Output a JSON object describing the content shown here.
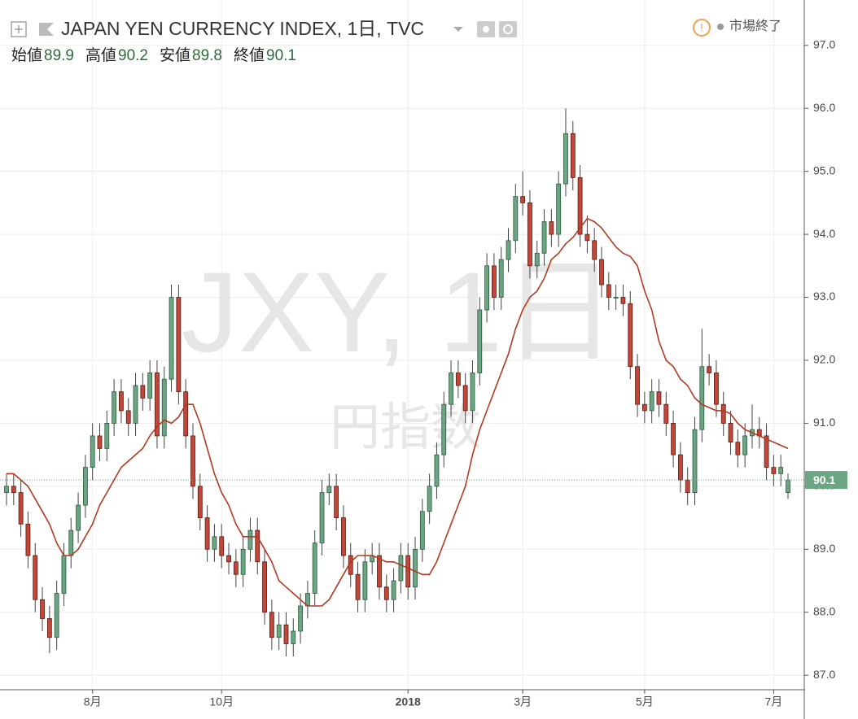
{
  "chart_data": {
    "type": "candlestick",
    "title": "JAPAN YEN CURRENCY INDEX, 1日, TVC",
    "ohlc_labels": [
      "始値",
      "高値",
      "安値",
      "終値"
    ],
    "status": "市場終了",
    "watermark": [
      "JXY, 1日",
      "円指数"
    ],
    "up_color": "#6ba583",
    "down_color": "#c0473a",
    "ma_color": "#b23a22",
    "grid": true,
    "categories": [
      null,
      null,
      null,
      null,
      null,
      null,
      null,
      null,
      null,
      null,
      null,
      null,
      "8月",
      null,
      null,
      null,
      null,
      null,
      null,
      null,
      null,
      null,
      null,
      null,
      null,
      null,
      null,
      null,
      null,
      null,
      "10月",
      null,
      null,
      null,
      null,
      null,
      null,
      null,
      null,
      null,
      null,
      null,
      null,
      null,
      null,
      null,
      null,
      null,
      null,
      null,
      null,
      null,
      null,
      null,
      null,
      null,
      "2018",
      null,
      null,
      null,
      null,
      null,
      null,
      null,
      null,
      null,
      null,
      null,
      null,
      null,
      null,
      null,
      "3月",
      null,
      null,
      null,
      null,
      null,
      null,
      null,
      null,
      null,
      null,
      null,
      null,
      null,
      null,
      null,
      null,
      "5月",
      null,
      null,
      null,
      null,
      null,
      null,
      null,
      null,
      null,
      null,
      null,
      null,
      null,
      null,
      null,
      null,
      null,
      "7月",
      null,
      null
    ],
    "open": [
      89.9,
      90.0,
      89.9,
      89.4,
      88.9,
      88.2,
      87.9,
      87.6,
      88.3,
      88.9,
      89.3,
      89.7,
      90.3,
      90.8,
      90.6,
      91.0,
      91.5,
      91.2,
      91.0,
      91.6,
      91.4,
      91.8,
      90.8,
      91.7,
      93.0,
      91.5,
      90.8,
      90.0,
      89.5,
      89.0,
      89.2,
      88.9,
      88.8,
      88.6,
      89.0,
      89.3,
      88.8,
      88.0,
      87.6,
      87.8,
      87.5,
      87.7,
      88.1,
      88.3,
      89.1,
      89.9,
      90.0,
      89.5,
      88.9,
      88.6,
      88.2,
      88.8,
      88.9,
      88.4,
      88.2,
      88.5,
      88.9,
      88.4,
      89.0,
      89.6,
      90.0,
      90.5,
      91.3,
      91.8,
      91.6,
      91.2,
      91.8,
      92.8,
      93.5,
      93.0,
      93.6,
      93.9,
      94.6,
      94.5,
      93.5,
      93.7,
      94.2,
      94.0,
      94.8,
      95.6,
      94.9,
      94.0,
      93.9,
      93.6,
      93.2,
      93.0,
      93.0,
      92.9,
      91.9,
      91.3,
      91.2,
      91.5,
      91.3,
      91.0,
      90.5,
      90.1,
      89.9,
      90.9,
      91.9,
      91.8,
      91.3,
      91.0,
      90.7,
      90.5,
      90.8,
      90.9,
      90.8,
      90.3,
      90.2,
      89.9
    ],
    "high": [
      90.2,
      90.2,
      90.1,
      89.6,
      89.1,
      88.4,
      88.1,
      88.5,
      89.1,
      89.5,
      89.9,
      90.5,
      91.0,
      91.0,
      91.2,
      91.7,
      91.7,
      91.4,
      91.8,
      91.8,
      92.0,
      92.0,
      91.9,
      93.2,
      93.2,
      91.7,
      91.0,
      90.2,
      89.7,
      89.4,
      89.4,
      89.1,
      89.0,
      89.2,
      89.5,
      89.5,
      89.0,
      88.2,
      88.0,
      88.0,
      87.9,
      88.3,
      88.5,
      89.3,
      90.1,
      90.2,
      90.2,
      89.7,
      89.1,
      88.8,
      89.0,
      89.1,
      89.1,
      88.6,
      88.7,
      89.1,
      89.1,
      89.2,
      89.8,
      90.2,
      90.7,
      91.5,
      92.0,
      92.0,
      91.8,
      92.0,
      93.0,
      93.7,
      93.7,
      93.8,
      94.1,
      94.8,
      95.0,
      94.7,
      93.9,
      94.4,
      94.4,
      95.0,
      96.0,
      95.8,
      95.1,
      94.3,
      94.1,
      93.8,
      93.4,
      93.2,
      93.2,
      93.1,
      92.1,
      91.5,
      91.7,
      91.7,
      91.5,
      91.2,
      90.7,
      90.3,
      91.1,
      92.5,
      92.1,
      92.0,
      91.5,
      91.2,
      90.9,
      91.0,
      91.3,
      91.1,
      91.0,
      90.5,
      90.5,
      90.2
    ],
    "low": [
      89.7,
      89.7,
      89.2,
      88.7,
      88.0,
      87.7,
      87.35,
      87.4,
      88.1,
      88.7,
      89.1,
      89.5,
      90.1,
      90.4,
      90.4,
      90.8,
      91.0,
      90.8,
      90.8,
      91.2,
      91.2,
      90.6,
      90.6,
      91.5,
      91.3,
      90.6,
      89.8,
      89.3,
      88.8,
      88.8,
      88.7,
      88.6,
      88.4,
      88.4,
      88.8,
      88.6,
      87.8,
      87.4,
      87.4,
      87.3,
      87.3,
      87.5,
      87.9,
      88.1,
      88.9,
      89.7,
      89.3,
      88.7,
      88.4,
      88.0,
      88.0,
      88.6,
      88.2,
      88.0,
      88.0,
      88.3,
      88.2,
      88.2,
      88.8,
      89.4,
      89.8,
      90.3,
      91.1,
      91.4,
      91.0,
      91.0,
      91.6,
      92.6,
      92.8,
      92.8,
      93.4,
      93.7,
      94.3,
      93.3,
      93.3,
      93.5,
      93.8,
      93.8,
      94.6,
      94.7,
      93.8,
      93.7,
      93.4,
      93.0,
      92.8,
      92.8,
      92.7,
      91.7,
      91.1,
      91.0,
      91.0,
      91.1,
      90.8,
      90.3,
      89.9,
      89.7,
      89.7,
      90.7,
      91.6,
      91.1,
      90.8,
      90.5,
      90.3,
      90.3,
      90.6,
      90.6,
      90.1,
      90.0,
      90.0,
      89.8
    ],
    "close": [
      90.0,
      89.9,
      89.4,
      88.9,
      88.2,
      87.9,
      87.6,
      88.3,
      88.9,
      89.3,
      89.7,
      90.3,
      90.8,
      90.6,
      91.0,
      91.5,
      91.2,
      91.0,
      91.6,
      91.4,
      91.8,
      90.8,
      91.7,
      93.0,
      91.5,
      90.8,
      90.0,
      89.5,
      89.0,
      89.2,
      88.9,
      88.8,
      88.6,
      89.0,
      89.3,
      88.8,
      88.0,
      87.6,
      87.8,
      87.5,
      87.7,
      88.1,
      88.3,
      89.1,
      89.9,
      90.0,
      89.5,
      88.9,
      88.6,
      88.2,
      88.8,
      88.9,
      88.4,
      88.2,
      88.5,
      88.9,
      88.4,
      89.0,
      89.6,
      90.0,
      90.5,
      91.3,
      91.8,
      91.6,
      91.2,
      91.8,
      92.8,
      93.5,
      93.0,
      93.6,
      93.9,
      94.6,
      94.5,
      93.5,
      93.7,
      94.2,
      94.0,
      94.8,
      95.6,
      94.9,
      94.0,
      93.9,
      93.6,
      93.2,
      93.0,
      93.0,
      92.9,
      91.9,
      91.3,
      91.2,
      91.5,
      91.3,
      91.0,
      90.5,
      90.1,
      89.9,
      90.9,
      91.9,
      91.8,
      91.3,
      91.0,
      90.7,
      90.5,
      90.8,
      90.9,
      90.8,
      90.3,
      90.2,
      90.3,
      90.1
    ],
    "ma": [
      90.2,
      90.2,
      90.1,
      90.0,
      89.8,
      89.6,
      89.4,
      89.1,
      88.9,
      88.9,
      89.0,
      89.2,
      89.4,
      89.7,
      89.9,
      90.1,
      90.3,
      90.4,
      90.5,
      90.6,
      90.8,
      90.95,
      91.05,
      91.0,
      91.1,
      91.3,
      91.3,
      91.0,
      90.6,
      90.2,
      89.9,
      89.7,
      89.4,
      89.2,
      89.2,
      89.2,
      89.0,
      88.8,
      88.5,
      88.4,
      88.3,
      88.2,
      88.1,
      88.1,
      88.1,
      88.2,
      88.4,
      88.6,
      88.8,
      88.9,
      88.9,
      88.9,
      88.85,
      88.8,
      88.8,
      88.75,
      88.7,
      88.65,
      88.6,
      88.6,
      88.8,
      89.1,
      89.4,
      89.7,
      90.0,
      90.5,
      90.9,
      91.2,
      91.5,
      91.8,
      92.1,
      92.5,
      92.8,
      93.0,
      93.1,
      93.3,
      93.6,
      93.7,
      93.85,
      93.95,
      94.1,
      94.25,
      94.2,
      94.1,
      93.95,
      93.8,
      93.7,
      93.65,
      93.5,
      93.1,
      92.8,
      92.3,
      92.0,
      91.9,
      91.7,
      91.6,
      91.4,
      91.3,
      91.25,
      91.2,
      91.2,
      91.15,
      91.0,
      90.9,
      90.85,
      90.8,
      90.75,
      90.7,
      90.65,
      90.6
    ],
    "ylim": [
      86.77,
      97.72
    ],
    "yticks": [
      {
        "value": 87,
        "label": "87.0"
      },
      {
        "value": 88,
        "label": "88.0"
      },
      {
        "value": 89,
        "label": "89.0"
      },
      {
        "value": 90,
        "label": "90.0"
      },
      {
        "value": 91,
        "label": "91.0"
      },
      {
        "value": 92,
        "label": "92.0"
      },
      {
        "value": 93,
        "label": "93.0"
      },
      {
        "value": 94,
        "label": "94.0"
      },
      {
        "value": 95,
        "label": "95.0"
      },
      {
        "value": 96,
        "label": "96.0"
      },
      {
        "value": 97,
        "label": "97.0"
      }
    ]
  }
}
